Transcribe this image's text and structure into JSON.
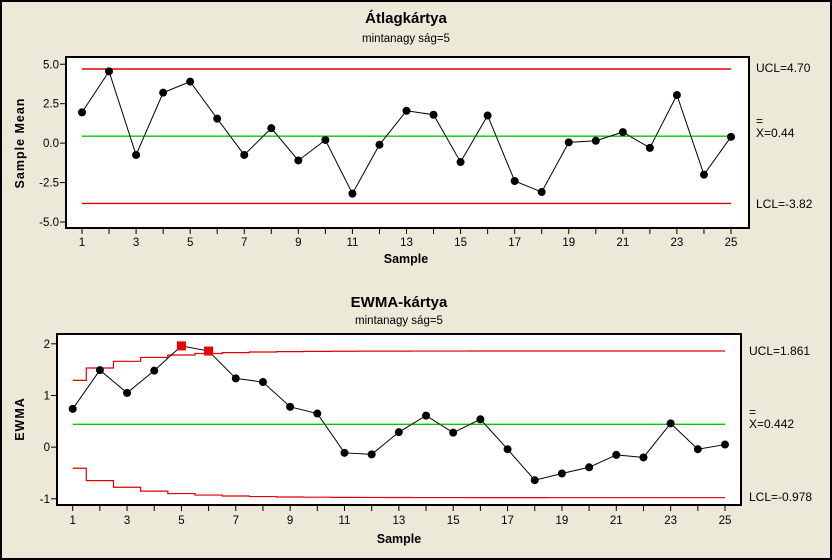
{
  "background": "#ece9d8",
  "palette": {
    "plot_bg": "#ffffff",
    "frame": "#000000",
    "limit_red": "#e00000",
    "center_green": "#00c800",
    "series_black": "#000000",
    "out_of_control_red": "#ee0000"
  },
  "chart_data": [
    {
      "type": "line",
      "title": "Átlagkártya",
      "subtitle": "mintanagy ság=5",
      "xlabel": "Sample",
      "ylabel": "Sample Mean",
      "x": [
        1,
        2,
        3,
        4,
        5,
        6,
        7,
        8,
        9,
        10,
        11,
        12,
        13,
        14,
        15,
        16,
        17,
        18,
        19,
        20,
        21,
        22,
        23,
        24,
        25
      ],
      "values": [
        1.95,
        4.55,
        -0.75,
        3.2,
        3.9,
        1.55,
        -0.75,
        0.95,
        -1.1,
        0.2,
        -3.2,
        -0.1,
        2.05,
        1.8,
        -1.2,
        1.75,
        -2.4,
        -3.1,
        0.05,
        0.15,
        0.7,
        -0.3,
        3.05,
        -2.0,
        0.4
      ],
      "yticks": [
        5.0,
        2.5,
        0.0,
        -2.5,
        -5.0
      ],
      "ytick_labels": [
        "5.0",
        "2.5",
        "0.0",
        "-2.5",
        "-5.0"
      ],
      "xtick_labels": [
        "1",
        "3",
        "5",
        "7",
        "9",
        "11",
        "13",
        "15",
        "17",
        "19",
        "21",
        "23",
        "25"
      ],
      "ylim": [
        -5.38,
        5.46
      ],
      "grid": false,
      "center": {
        "value": 0.44,
        "bar": "=",
        "label": "X=0.44"
      },
      "ucl": {
        "value": 4.7,
        "label": "UCL=4.70"
      },
      "lcl": {
        "value": -3.82,
        "label": "LCL=-3.82"
      }
    },
    {
      "type": "line",
      "title": "EWMA-kártya",
      "subtitle": "mintanagy ság=5",
      "xlabel": "Sample",
      "ylabel": "EWMA",
      "x": [
        1,
        2,
        3,
        4,
        5,
        6,
        7,
        8,
        9,
        10,
        11,
        12,
        13,
        14,
        15,
        16,
        17,
        18,
        19,
        20,
        21,
        22,
        23,
        24,
        25
      ],
      "values": [
        0.74,
        1.49,
        1.05,
        1.48,
        1.96,
        1.86,
        1.33,
        1.26,
        0.78,
        0.65,
        -0.11,
        -0.14,
        0.29,
        0.61,
        0.28,
        0.54,
        -0.04,
        -0.64,
        -0.51,
        -0.39,
        -0.15,
        -0.2,
        0.46,
        -0.04,
        0.05
      ],
      "out_of_control_samples": [
        5,
        6
      ],
      "yticks": [
        2,
        1,
        0,
        -1
      ],
      "ytick_labels": [
        "2",
        "1",
        "0",
        "-1"
      ],
      "xtick_labels": [
        "1",
        "3",
        "5",
        "7",
        "9",
        "11",
        "13",
        "15",
        "17",
        "19",
        "21",
        "23",
        "25"
      ],
      "ylim": [
        -1.12,
        2.19
      ],
      "grid": false,
      "center": {
        "value": 0.442,
        "bar": "=",
        "label": "X=0.442"
      },
      "ucl": {
        "value": 1.861,
        "label": "UCL=1.861"
      },
      "lcl": {
        "value": -0.978,
        "label": "LCL=-0.978"
      },
      "ucl_steps": [
        1.293,
        1.532,
        1.661,
        1.736,
        1.783,
        1.812,
        1.83,
        1.841,
        1.849,
        1.853,
        1.856,
        1.858,
        1.859,
        1.86,
        1.86,
        1.861,
        1.861,
        1.861,
        1.861,
        1.861,
        1.861,
        1.861,
        1.861,
        1.861,
        1.861
      ],
      "lcl_steps": [
        -0.409,
        -0.648,
        -0.777,
        -0.852,
        -0.899,
        -0.928,
        -0.946,
        -0.957,
        -0.965,
        -0.969,
        -0.972,
        -0.974,
        -0.975,
        -0.976,
        -0.976,
        -0.977,
        -0.977,
        -0.977,
        -0.978,
        -0.978,
        -0.978,
        -0.978,
        -0.978,
        -0.978,
        -0.978
      ]
    }
  ]
}
